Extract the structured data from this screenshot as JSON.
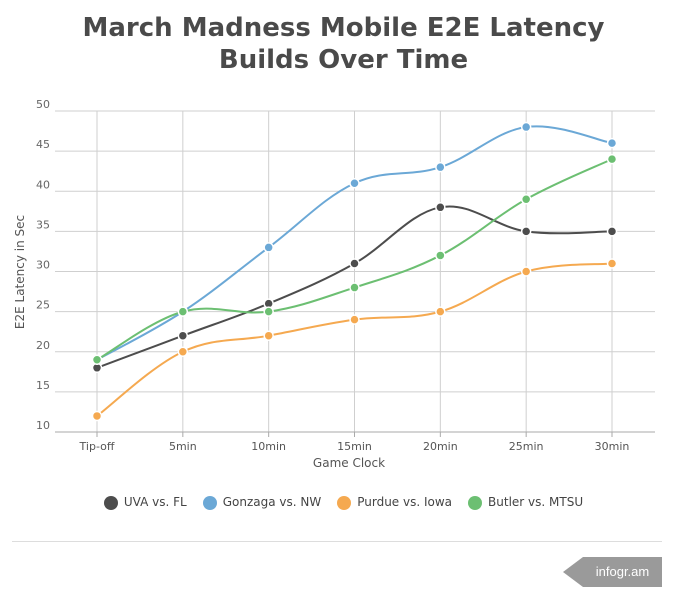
{
  "chart_data": {
    "type": "line",
    "title_line1": "March Madness Mobile E2E Latency",
    "title_line2": "Builds Over Time",
    "xlabel": "Game Clock",
    "ylabel": "E2E Latency in Sec",
    "categories": [
      "Tip-off",
      "5min",
      "10min",
      "15min",
      "20min",
      "25min",
      "30min"
    ],
    "ylim": [
      10,
      50
    ],
    "yticks": [
      10,
      15,
      20,
      25,
      30,
      35,
      40,
      45,
      50
    ],
    "series": [
      {
        "name": "UVA vs. FL",
        "color": "#4d4d4d",
        "values": [
          18,
          22,
          26,
          31,
          38,
          35,
          35
        ]
      },
      {
        "name": "Gonzaga vs. NW",
        "color": "#6ba8d6",
        "values": [
          19,
          25,
          33,
          41,
          43,
          48,
          46
        ]
      },
      {
        "name": "Purdue vs. Iowa",
        "color": "#f5a950",
        "values": [
          12,
          20,
          22,
          24,
          25,
          30,
          31
        ]
      },
      {
        "name": "Butler vs. MTSU",
        "color": "#6cbf72",
        "values": [
          19,
          25,
          25,
          28,
          32,
          39,
          44
        ]
      }
    ]
  },
  "footer": {
    "brand": "infogr.am"
  }
}
